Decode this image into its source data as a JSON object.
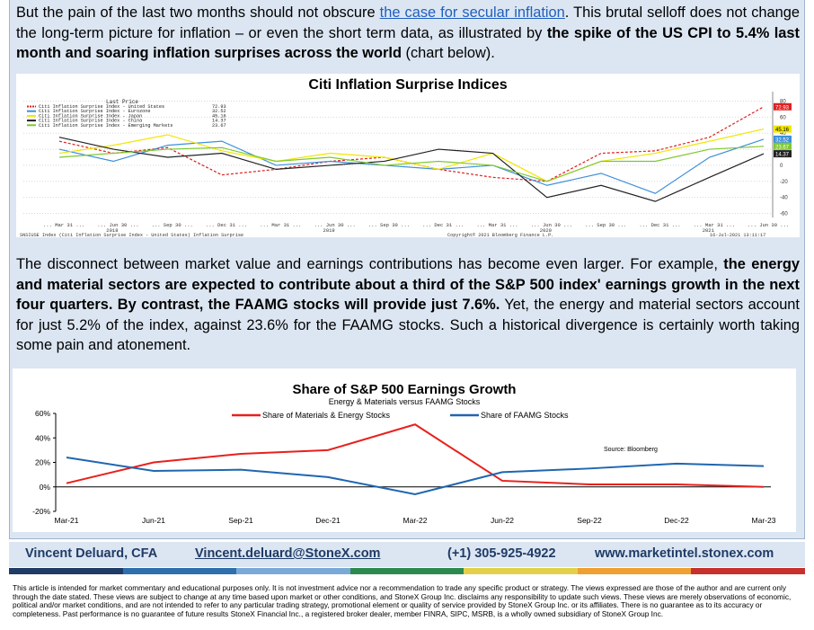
{
  "para1": {
    "t1": "But the pain of the last two months should not obscure ",
    "link": "the case for secular inflation",
    "t2": ". This brutal selloff does not change the long-term picture for inflation – or even the short term data, as illustrated by ",
    "b1": "the spike of the US CPI to 5.4% last month and soaring inflation surprises across the world",
    "t3": " (chart below)."
  },
  "chart1": {
    "title": "Citi Inflation Surprise Indices",
    "legend_header": "Last Price",
    "legend": [
      {
        "label": "Citi Inflation Surprise Index - United States",
        "value": "72.93",
        "color": "#e02020",
        "dash": true
      },
      {
        "label": "Citi Inflation Surprise Index - Eurozone",
        "value": "32.52",
        "color": "#3d8fdc",
        "dash": false
      },
      {
        "label": "Citi Inflation Surprise Index - Japan",
        "value": "45.16",
        "color": "#f2e600",
        "dash": false
      },
      {
        "label": "Citi Inflation Surprise Index - China",
        "value": "14.37",
        "color": "#222222",
        "dash": false
      },
      {
        "label": "Citi Inflation Surprise Index - Emerging Markets",
        "value": "23.67",
        "color": "#7ec832",
        "dash": false
      }
    ],
    "x_ticks": [
      "Mar 31",
      "Jun 30",
      "Sep 30",
      "Dec 31",
      "Mar 31",
      "Jun 30",
      "Sep 30",
      "Dec 31",
      "Mar 31",
      "Jun 30",
      "Sep 30",
      "Dec 31",
      "Mar 31",
      "Jun 30"
    ],
    "years": [
      "2018",
      "2019",
      "2020",
      "2021"
    ],
    "y_ticks": [
      "80",
      "60",
      "40",
      "20",
      "0",
      "-20",
      "-40",
      "-60"
    ],
    "source_left": "SNSIUSE Index (Citi Inflation Surprise Index - United States) Inflation Surprise",
    "source_right": "Copyright© 2021 Bloomberg Finance L.P.",
    "timestamp": "16-Jul-2021 13:11:17",
    "chart_data": {
      "type": "line",
      "x": [
        "2018-03",
        "2018-06",
        "2018-09",
        "2018-12",
        "2019-03",
        "2019-06",
        "2019-09",
        "2019-12",
        "2020-03",
        "2020-06",
        "2020-09",
        "2020-12",
        "2021-03",
        "2021-06"
      ],
      "ylim": [
        -65,
        85
      ],
      "series": [
        {
          "name": "Citi Inflation Surprise Index - United States",
          "values": [
            30,
            15,
            22,
            -12,
            -5,
            5,
            10,
            -5,
            -15,
            -20,
            15,
            18,
            35,
            72.93
          ]
        },
        {
          "name": "Citi Inflation Surprise Index - Eurozone",
          "values": [
            20,
            5,
            25,
            30,
            0,
            5,
            0,
            -5,
            0,
            -25,
            -10,
            -35,
            10,
            32.52
          ]
        },
        {
          "name": "Citi Inflation Surprise Index - Japan",
          "values": [
            15,
            25,
            38,
            18,
            5,
            15,
            10,
            -5,
            15,
            -20,
            5,
            15,
            30,
            45.16
          ]
        },
        {
          "name": "Citi Inflation Surprise Index - China",
          "values": [
            35,
            20,
            10,
            15,
            -5,
            0,
            5,
            20,
            15,
            -40,
            -25,
            -45,
            -15,
            14.37
          ]
        },
        {
          "name": "Citi Inflation Surprise Index - Emerging Markets",
          "values": [
            10,
            15,
            20,
            22,
            5,
            10,
            0,
            5,
            0,
            -20,
            5,
            5,
            20,
            23.67
          ]
        }
      ]
    }
  },
  "para2": {
    "t1": "The disconnect between market value and earnings contributions has become even larger. For example, ",
    "b1": "the energy and material sectors are expected to contribute about a third of the S&P 500 index' earnings growth in the next four quarters. By contrast, the FAAMG stocks will provide just 7.6%.",
    "t2": " Yet, the energy and material sectors account for just 5.2% of the index, against 23.6% for the FAAMG stocks. Such a historical divergence is certainly worth taking some pain and atonement."
  },
  "chart2": {
    "title": "Share of S&P 500 Earnings Growth",
    "subtitle": "Energy & Materials versus FAAMG Stocks",
    "source": "Source: Bloomberg",
    "colors": {
      "materials_energy": "#e8201c",
      "faamg": "#1f66b0"
    },
    "chart_data": {
      "type": "line",
      "categories": [
        "Mar-21",
        "Jun-21",
        "Sep-21",
        "Dec-21",
        "Mar-22",
        "Jun-22",
        "Sep-22",
        "Dec-22",
        "Mar-23"
      ],
      "y_ticks": [
        "60%",
        "40%",
        "20%",
        "0%",
        "-20%"
      ],
      "ylim": [
        -20,
        60
      ],
      "series": [
        {
          "name": "Share of Materials & Energy Stocks",
          "values": [
            3,
            20,
            27,
            30,
            51,
            5,
            2,
            2,
            0
          ]
        },
        {
          "name": "Share of FAAMG Stocks",
          "values": [
            24,
            13,
            14,
            8,
            -6,
            12,
            15,
            19,
            17
          ]
        }
      ]
    }
  },
  "footer": {
    "name": "Vincent Deluard, CFA",
    "email": "Vincent.deluard@StoneX.com",
    "phone": "(+1) 305-925-4922",
    "site": "www.marketintel.stonex.com",
    "stripe_colors": [
      "#1f3b66",
      "#2e6fae",
      "#7aa9d8",
      "#2d8a4e",
      "#e3d04a",
      "#f0a030",
      "#c8302c"
    ]
  },
  "disclaimer": "This article is intended for market commentary and educational purposes only. It is not investment advice nor a recommendation to trade any specific product or strategy. The views expressed are those of the author and are current only through the date stated. These views are subject to change at any time based upon market or other conditions, and StoneX Group Inc. disclaims any responsibility to update such views. These views are merely observations of economic, political and/or market conditions, and are not intended to refer to any particular trading strategy, promotional element or quality of service provided by StoneX Group Inc. or its affiliates. There is no guarantee as to its accuracy or completeness. Past performance is no guarantee of future results StoneX Financial Inc., a registered broker dealer, member FINRA, SIPC, MSRB, is a wholly owned subsidiary of StoneX Group Inc."
}
